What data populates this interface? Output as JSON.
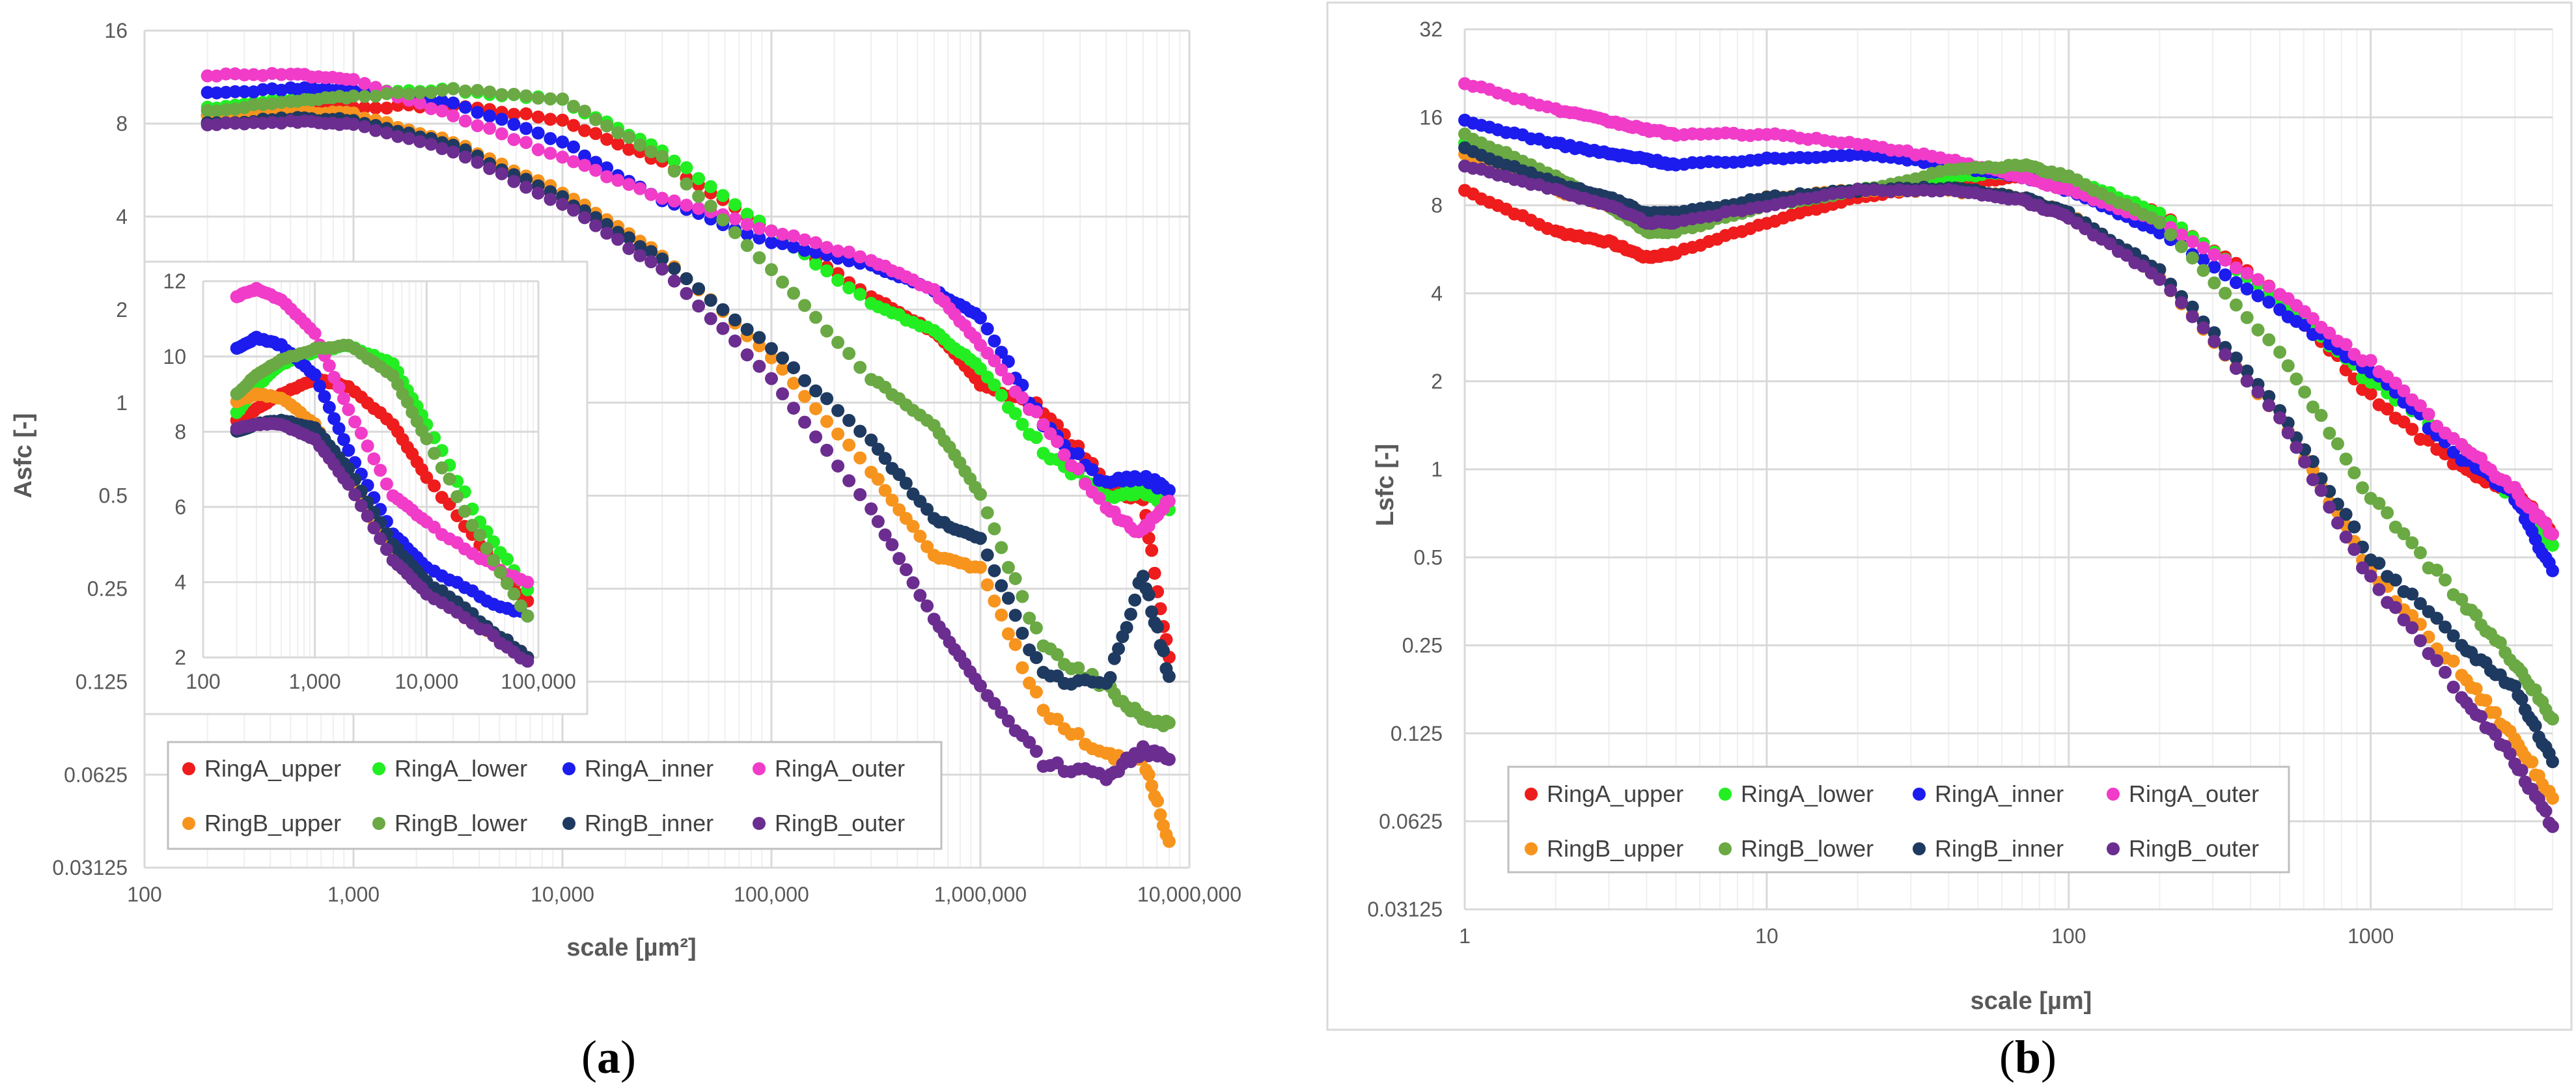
{
  "colors": {
    "RingA_upper": "#ee1c1c",
    "RingA_lower": "#22ee22",
    "RingA_inner": "#1c1cee",
    "RingA_outer": "#f03cc8",
    "RingB_upper": "#f7941d",
    "RingB_lower": "#6aa944",
    "RingB_inner": "#1f3a60",
    "RingB_outer": "#6b2d8f"
  },
  "chart_data": [
    {
      "id": "a",
      "type": "scatter",
      "panel_label": "a",
      "xlabel": "scale [µm²]",
      "ylabel": "Asfc [-]",
      "xscale": "log",
      "yscale": "log2",
      "xlim": [
        100,
        10000000
      ],
      "ylim": [
        0.03125,
        16
      ],
      "x_ticks": [
        "100",
        "1,000",
        "10,000",
        "100,000",
        "1,000,000",
        "10,000,000"
      ],
      "y_ticks": [
        "0.03125",
        "0.0625",
        "0.125",
        "0.25",
        "0.5",
        "1",
        "2",
        "4",
        "8",
        "16"
      ],
      "legend_position": "bottom-left",
      "series": [
        {
          "name": "RingA_upper",
          "x": [
            200,
            500,
            1000,
            3000,
            10000,
            30000,
            100000,
            300000,
            600000,
            1000000,
            2000000,
            4000000,
            6000000,
            8000000
          ],
          "values": [
            8.5,
            8.8,
            9.0,
            9.2,
            8.2,
            6.0,
            3.6,
            2.2,
            1.7,
            1.15,
            0.95,
            0.55,
            0.48,
            0.15
          ]
        },
        {
          "name": "RingA_lower",
          "x": [
            200,
            500,
            1000,
            3000,
            10000,
            30000,
            100000,
            300000,
            600000,
            1000000,
            2000000,
            4000000,
            6000000,
            8000000
          ],
          "values": [
            9.0,
            9.6,
            10.0,
            10.3,
            9.5,
            6.5,
            3.6,
            2.1,
            1.7,
            1.3,
            0.7,
            0.5,
            0.52,
            0.45
          ]
        },
        {
          "name": "RingA_inner",
          "x": [
            200,
            500,
            1000,
            3000,
            10000,
            30000,
            100000,
            300000,
            600000,
            1000000,
            2000000,
            4000000,
            6000000,
            8000000
          ],
          "values": [
            10.0,
            10.4,
            10.3,
            9.3,
            7.0,
            4.5,
            3.3,
            2.8,
            2.3,
            1.9,
            0.85,
            0.55,
            0.58,
            0.52
          ]
        },
        {
          "name": "RingA_outer",
          "x": [
            200,
            500,
            1000,
            3000,
            10000,
            30000,
            100000,
            300000,
            600000,
            1000000,
            2000000,
            4000000,
            6000000,
            8000000
          ],
          "values": [
            11.5,
            11.6,
            11.0,
            8.5,
            6.2,
            4.6,
            3.6,
            2.9,
            2.3,
            1.55,
            0.85,
            0.45,
            0.38,
            0.48
          ]
        },
        {
          "name": "RingB_upper",
          "x": [
            200,
            500,
            1000,
            3000,
            10000,
            30000,
            100000,
            300000,
            600000,
            1000000,
            2000000,
            4000000,
            6000000,
            8000000
          ],
          "values": [
            8.5,
            8.8,
            8.6,
            7.0,
            4.8,
            3.0,
            1.4,
            0.6,
            0.32,
            0.29,
            0.1,
            0.072,
            0.07,
            0.038
          ]
        },
        {
          "name": "RingB_lower",
          "x": [
            200,
            500,
            1000,
            3000,
            10000,
            30000,
            100000,
            300000,
            600000,
            1000000,
            2000000,
            4000000,
            6000000,
            8000000
          ],
          "values": [
            8.8,
            9.4,
            9.8,
            10.3,
            9.6,
            6.2,
            2.7,
            1.2,
            0.85,
            0.5,
            0.16,
            0.12,
            0.095,
            0.092
          ]
        },
        {
          "name": "RingB_inner",
          "x": [
            200,
            500,
            1000,
            3000,
            10000,
            30000,
            100000,
            300000,
            600000,
            1000000,
            2000000,
            4000000,
            6000000,
            8000000
          ],
          "values": [
            8.0,
            8.3,
            8.2,
            6.8,
            4.6,
            2.9,
            1.5,
            0.75,
            0.42,
            0.36,
            0.13,
            0.12,
            0.28,
            0.13
          ]
        },
        {
          "name": "RingB_outer",
          "x": [
            200,
            500,
            1000,
            3000,
            10000,
            30000,
            100000,
            300000,
            600000,
            1000000,
            2000000,
            4000000,
            6000000,
            8000000
          ],
          "values": [
            8.0,
            8.1,
            8.0,
            6.5,
            4.4,
            2.7,
            1.2,
            0.45,
            0.2,
            0.12,
            0.068,
            0.062,
            0.075,
            0.07
          ]
        }
      ]
    },
    {
      "id": "a-inset",
      "type": "scatter",
      "xscale": "log",
      "yscale": "linear",
      "xlim": [
        100,
        100000
      ],
      "ylim": [
        2,
        12
      ],
      "x_ticks": [
        "100",
        "1,000",
        "10,000",
        "100,000"
      ],
      "y_ticks": [
        "2",
        "4",
        "6",
        "8",
        "10",
        "12"
      ],
      "series": [
        {
          "name": "RingA_upper",
          "x": [
            200,
            300,
            500,
            1000,
            2000,
            5000,
            10000,
            30000,
            80000
          ],
          "values": [
            8.3,
            8.6,
            9.0,
            9.4,
            9.2,
            8.2,
            6.8,
            5.0,
            3.5
          ]
        },
        {
          "name": "RingA_lower",
          "x": [
            200,
            300,
            500,
            1000,
            2000,
            5000,
            10000,
            30000,
            80000
          ],
          "values": [
            8.5,
            9.2,
            9.8,
            10.1,
            10.3,
            9.8,
            8.2,
            5.6,
            3.8
          ]
        },
        {
          "name": "RingA_inner",
          "x": [
            200,
            300,
            500,
            1000,
            2000,
            5000,
            10000,
            30000,
            80000
          ],
          "values": [
            10.2,
            10.5,
            10.3,
            9.5,
            7.5,
            5.3,
            4.4,
            3.6,
            3.1
          ]
        },
        {
          "name": "RingA_outer",
          "x": [
            200,
            300,
            500,
            1000,
            2000,
            5000,
            10000,
            30000,
            80000
          ],
          "values": [
            11.6,
            11.8,
            11.5,
            10.6,
            8.6,
            6.3,
            5.6,
            4.6,
            4.0
          ]
        },
        {
          "name": "RingB_upper",
          "x": [
            200,
            300,
            500,
            1000,
            2000,
            5000,
            10000,
            30000,
            80000
          ],
          "values": [
            8.8,
            9.0,
            8.9,
            8.2,
            6.8,
            4.8,
            3.8,
            2.8,
            2.0
          ]
        },
        {
          "name": "RingB_lower",
          "x": [
            200,
            300,
            500,
            1000,
            2000,
            5000,
            10000,
            30000,
            80000
          ],
          "values": [
            9.0,
            9.5,
            9.9,
            10.2,
            10.3,
            9.5,
            7.8,
            5.2,
            3.1
          ]
        },
        {
          "name": "RingB_inner",
          "x": [
            200,
            300,
            500,
            1000,
            2000,
            5000,
            10000,
            30000,
            80000
          ],
          "values": [
            8.0,
            8.2,
            8.3,
            8.1,
            7.0,
            5.0,
            4.0,
            3.0,
            2.0
          ]
        },
        {
          "name": "RingB_outer",
          "x": [
            200,
            300,
            500,
            1000,
            2000,
            5000,
            10000,
            30000,
            80000
          ],
          "values": [
            8.1,
            8.2,
            8.2,
            7.8,
            6.6,
            4.6,
            3.7,
            2.8,
            1.9
          ]
        }
      ]
    },
    {
      "id": "b",
      "type": "scatter",
      "panel_label": "b",
      "xlabel": "scale [µm]",
      "ylabel": "Lsfc [-]",
      "xscale": "log",
      "yscale": "log2",
      "xlim": [
        1,
        4000
      ],
      "ylim": [
        0.03125,
        32
      ],
      "x_ticks": [
        "1",
        "10",
        "100",
        "1000"
      ],
      "y_ticks": [
        "0.03125",
        "0.0625",
        "0.125",
        "0.25",
        "0.5",
        "1",
        "2",
        "4",
        "8",
        "16",
        "32"
      ],
      "legend_position": "bottom-left",
      "series": [
        {
          "name": "RingA_upper",
          "x": [
            1,
            2,
            3,
            4,
            5,
            10,
            20,
            40,
            70,
            100,
            200,
            500,
            1000,
            2000,
            3000,
            4000
          ],
          "values": [
            9.0,
            6.5,
            6.0,
            5.3,
            5.5,
            7.0,
            8.5,
            9.5,
            10.0,
            9.5,
            7.5,
            4.0,
            1.8,
            1.0,
            0.85,
            0.6
          ]
        },
        {
          "name": "RingA_lower",
          "x": [
            1,
            2,
            3,
            4,
            5,
            10,
            20,
            40,
            70,
            100,
            200,
            500,
            1000,
            2000,
            3000,
            4000
          ],
          "values": [
            13.0,
            9.5,
            8.0,
            7.0,
            7.0,
            8.0,
            9.0,
            10.0,
            10.5,
            10.0,
            7.5,
            3.8,
            2.0,
            1.2,
            0.8,
            0.55
          ]
        },
        {
          "name": "RingA_inner",
          "x": [
            1,
            2,
            3,
            4,
            5,
            10,
            20,
            40,
            70,
            100,
            200,
            500,
            1000,
            2000,
            3000,
            4000
          ],
          "values": [
            15.5,
            13.0,
            12.0,
            11.5,
            11.0,
            11.5,
            12.0,
            11.0,
            10.0,
            9.0,
            6.5,
            3.5,
            2.2,
            1.1,
            0.8,
            0.45
          ]
        },
        {
          "name": "RingA_outer",
          "x": [
            1,
            2,
            3,
            4,
            5,
            10,
            20,
            40,
            70,
            100,
            200,
            500,
            1000,
            2000,
            3000,
            4000
          ],
          "values": [
            21.0,
            17.0,
            15.5,
            14.5,
            14.0,
            14.0,
            13.0,
            11.5,
            10.0,
            9.0,
            7.0,
            4.0,
            2.3,
            1.2,
            0.85,
            0.6
          ]
        },
        {
          "name": "RingB_upper",
          "x": [
            1,
            2,
            3,
            4,
            5,
            10,
            20,
            40,
            70,
            100,
            200,
            500,
            1000,
            2000,
            3000,
            4000
          ],
          "values": [
            12.0,
            9.0,
            8.0,
            7.0,
            7.0,
            8.5,
            9.0,
            9.0,
            8.5,
            7.5,
            4.5,
            1.5,
            0.45,
            0.2,
            0.12,
            0.075
          ]
        },
        {
          "name": "RingB_lower",
          "x": [
            1,
            2,
            3,
            4,
            5,
            10,
            20,
            40,
            70,
            100,
            200,
            500,
            1000,
            2000,
            3000,
            4000
          ],
          "values": [
            14.0,
            10.0,
            8.0,
            6.5,
            6.5,
            8.0,
            9.0,
            10.5,
            11.0,
            10.0,
            7.0,
            2.5,
            0.8,
            0.35,
            0.22,
            0.14
          ]
        },
        {
          "name": "RingB_inner",
          "x": [
            1,
            2,
            3,
            4,
            5,
            10,
            20,
            40,
            70,
            100,
            200,
            500,
            1000,
            2000,
            3000,
            4000
          ],
          "values": [
            12.5,
            9.5,
            8.5,
            7.5,
            7.5,
            8.5,
            9.0,
            9.2,
            8.5,
            7.5,
            4.8,
            1.6,
            0.5,
            0.25,
            0.18,
            0.1
          ]
        },
        {
          "name": "RingB_outer",
          "x": [
            1,
            2,
            3,
            4,
            5,
            10,
            20,
            40,
            70,
            100,
            200,
            500,
            1000,
            2000,
            3000,
            4000
          ],
          "values": [
            11.0,
            9.0,
            8.0,
            7.0,
            7.0,
            8.0,
            9.0,
            9.0,
            8.3,
            7.3,
            4.5,
            1.5,
            0.42,
            0.17,
            0.1,
            0.06
          ]
        }
      ]
    }
  ]
}
